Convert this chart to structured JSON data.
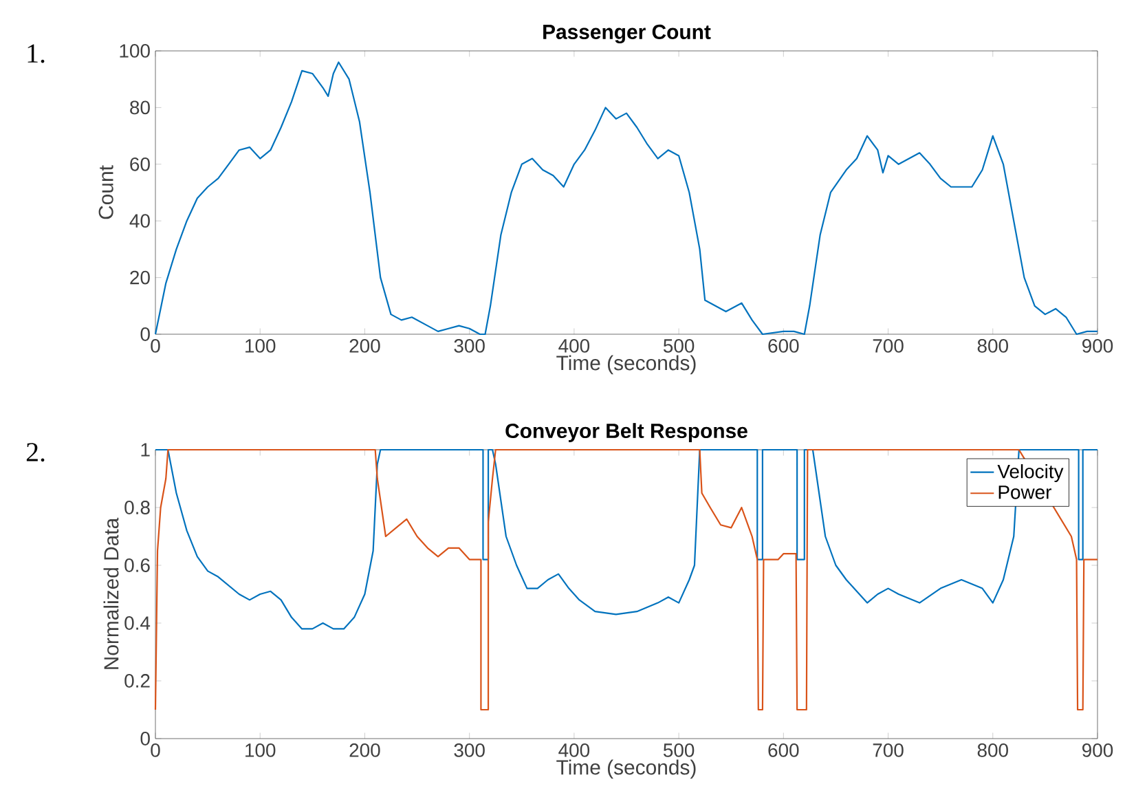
{
  "chart_data": [
    {
      "type": "line",
      "title": "Passenger Count",
      "xlabel": "Time (seconds)",
      "ylabel": "Count",
      "annotations": [
        "1."
      ],
      "xlim": [
        0,
        900
      ],
      "ylim": [
        0,
        100
      ],
      "xticks": [
        0,
        100,
        200,
        300,
        400,
        500,
        600,
        700,
        800,
        900
      ],
      "yticks": [
        0,
        20,
        40,
        60,
        80,
        100
      ],
      "grid": false,
      "legend": false,
      "series": [
        {
          "color": "#0072bd",
          "x": [
            0,
            10,
            20,
            30,
            40,
            50,
            60,
            70,
            80,
            90,
            100,
            110,
            120,
            130,
            140,
            150,
            160,
            165,
            170,
            175,
            185,
            195,
            205,
            215,
            225,
            235,
            245,
            260,
            270,
            280,
            290,
            300,
            310,
            315,
            320,
            330,
            340,
            350,
            360,
            370,
            380,
            390,
            400,
            410,
            420,
            430,
            440,
            450,
            460,
            470,
            480,
            490,
            500,
            510,
            520,
            525,
            535,
            545,
            560,
            570,
            580,
            600,
            610,
            620,
            625,
            635,
            645,
            660,
            670,
            680,
            690,
            695,
            700,
            710,
            720,
            730,
            740,
            750,
            760,
            770,
            780,
            790,
            800,
            810,
            820,
            830,
            840,
            850,
            860,
            870,
            880,
            890,
            900
          ],
          "values": [
            0,
            18,
            30,
            40,
            48,
            52,
            55,
            60,
            65,
            66,
            62,
            65,
            73,
            82,
            93,
            92,
            87,
            84,
            92,
            96,
            90,
            75,
            50,
            20,
            7,
            5,
            6,
            3,
            1,
            2,
            3,
            2,
            0,
            0,
            10,
            35,
            50,
            60,
            62,
            58,
            56,
            52,
            60,
            65,
            72,
            80,
            76,
            78,
            73,
            67,
            62,
            65,
            63,
            50,
            30,
            12,
            10,
            8,
            11,
            5,
            0,
            1,
            1,
            0,
            10,
            35,
            50,
            58,
            62,
            70,
            65,
            57,
            63,
            60,
            62,
            64,
            60,
            55,
            52,
            52,
            52,
            58,
            70,
            60,
            40,
            20,
            10,
            7,
            9,
            6,
            0,
            1,
            1
          ]
        }
      ]
    },
    {
      "type": "line",
      "title": "Conveyor Belt Response",
      "xlabel": "Time (seconds)",
      "ylabel": "Normalized Data",
      "annotations": [
        "2."
      ],
      "xlim": [
        0,
        900
      ],
      "ylim": [
        0,
        1
      ],
      "xticks": [
        0,
        100,
        200,
        300,
        400,
        500,
        600,
        700,
        800,
        900
      ],
      "yticks": [
        0,
        0.2,
        0.4,
        0.6,
        0.8,
        1
      ],
      "grid": false,
      "legend": "top right",
      "series": [
        {
          "name": "Velocity",
          "color": "#0072bd",
          "x": [
            0,
            12,
            20,
            30,
            40,
            50,
            60,
            80,
            90,
            100,
            110,
            120,
            130,
            140,
            150,
            160,
            170,
            180,
            190,
            200,
            208,
            212,
            215,
            313,
            313,
            318,
            318,
            322,
            325,
            335,
            345,
            355,
            365,
            375,
            385,
            395,
            405,
            420,
            440,
            460,
            480,
            490,
            500,
            510,
            515,
            520,
            575,
            575,
            580,
            580,
            613,
            613,
            620,
            620,
            628,
            630,
            640,
            650,
            660,
            680,
            690,
            700,
            710,
            730,
            750,
            770,
            790,
            800,
            810,
            820,
            825,
            882,
            882,
            886,
            886,
            900
          ],
          "values": [
            1,
            1,
            0.85,
            0.72,
            0.63,
            0.58,
            0.56,
            0.5,
            0.48,
            0.5,
            0.51,
            0.48,
            0.42,
            0.38,
            0.38,
            0.4,
            0.38,
            0.38,
            0.42,
            0.5,
            0.65,
            0.95,
            1,
            1,
            0.62,
            0.62,
            1,
            1,
            0.95,
            0.7,
            0.6,
            0.52,
            0.52,
            0.55,
            0.57,
            0.52,
            0.48,
            0.44,
            0.43,
            0.44,
            0.47,
            0.49,
            0.47,
            0.55,
            0.6,
            1,
            1,
            0.62,
            0.62,
            1,
            1,
            0.62,
            0.62,
            1,
            1,
            0.95,
            0.7,
            0.6,
            0.55,
            0.47,
            0.5,
            0.52,
            0.5,
            0.47,
            0.52,
            0.55,
            0.52,
            0.47,
            0.55,
            0.7,
            1,
            1,
            0.62,
            0.62,
            1,
            1
          ]
        },
        {
          "name": "Power",
          "color": "#d95319",
          "x": [
            0,
            2,
            5,
            10,
            12,
            210,
            212,
            220,
            230,
            240,
            250,
            260,
            270,
            280,
            290,
            300,
            311,
            311,
            318,
            318,
            322,
            325,
            520,
            522,
            530,
            540,
            550,
            560,
            570,
            575,
            576,
            580,
            581,
            595,
            600,
            612,
            613,
            622,
            623,
            825,
            830,
            840,
            860,
            875,
            880,
            881,
            886,
            887,
            900
          ],
          "values": [
            0.1,
            0.65,
            0.8,
            0.9,
            1,
            1,
            0.9,
            0.7,
            0.73,
            0.76,
            0.7,
            0.66,
            0.63,
            0.66,
            0.66,
            0.62,
            0.62,
            0.1,
            0.1,
            0.75,
            0.9,
            1,
            1,
            0.85,
            0.8,
            0.74,
            0.73,
            0.8,
            0.7,
            0.62,
            0.1,
            0.1,
            0.62,
            0.62,
            0.64,
            0.64,
            0.1,
            0.1,
            1,
            1,
            0.97,
            null,
            null,
            0.7,
            0.62,
            0.1,
            0.1,
            0.62,
            0.62
          ]
        }
      ]
    }
  ]
}
